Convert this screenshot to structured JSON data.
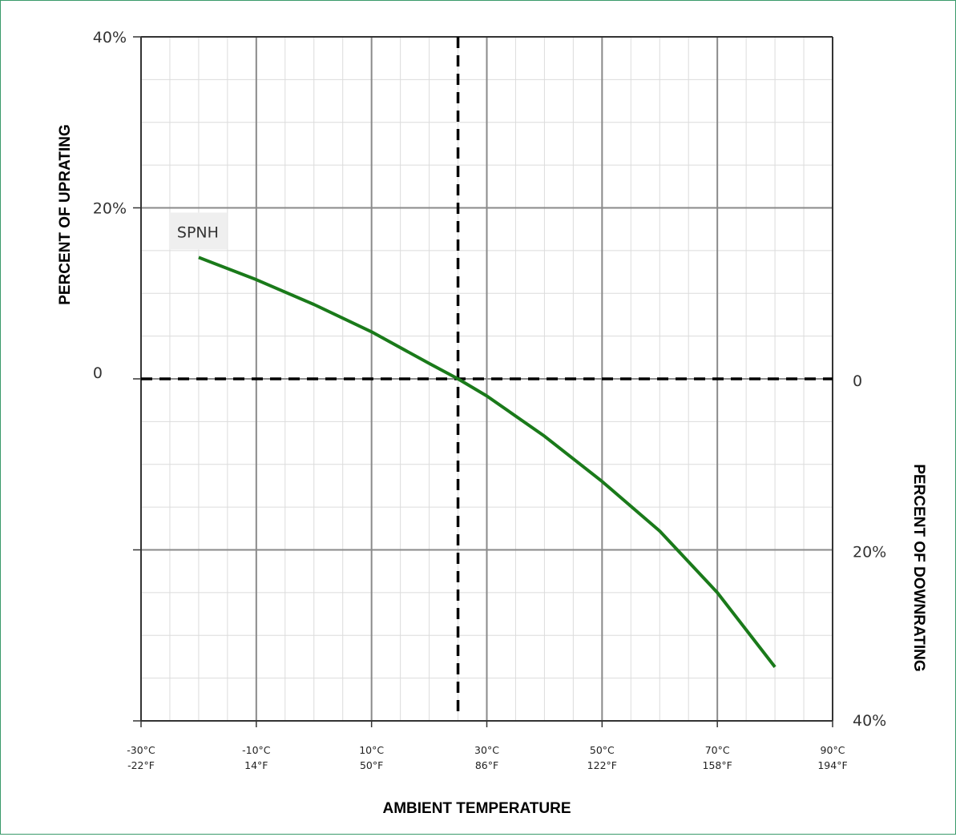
{
  "chart_data": {
    "type": "line",
    "title": "",
    "xlabel": "AMBIENT TEMPERATURE",
    "ylabel_left": "PERCENT OF UPRATING",
    "ylabel_right": "PERCENT OF DOWNRATING",
    "x_range": [
      -30,
      90
    ],
    "y_range": [
      -40,
      40
    ],
    "x_ticks": [
      {
        "value": -30,
        "c": "-30°C",
        "f": "-22°F"
      },
      {
        "value": -10,
        "c": "-10°C",
        "f": "14°F"
      },
      {
        "value": 10,
        "c": "10°C",
        "f": "50°F"
      },
      {
        "value": 30,
        "c": "30°C",
        "f": "86°F"
      },
      {
        "value": 50,
        "c": "50°C",
        "f": "122°F"
      },
      {
        "value": 70,
        "c": "70°C",
        "f": "158°F"
      },
      {
        "value": 90,
        "c": "90°C",
        "f": "194°F"
      }
    ],
    "left_ticks": [
      {
        "value": 40,
        "label": "40%"
      },
      {
        "value": 20,
        "label": "20%"
      },
      {
        "value": 0,
        "label": "0"
      }
    ],
    "right_ticks": [
      {
        "value": 0,
        "label": "0"
      },
      {
        "value": -20,
        "label": "20%"
      },
      {
        "value": -40,
        "label": "40%"
      }
    ],
    "major_x_step": 20,
    "minor_x_step": 5,
    "major_y_step": 20,
    "minor_y_step": 5,
    "reference_x": 25,
    "reference_y": 0,
    "grid": true,
    "series": [
      {
        "name": "SPNH",
        "color": "#1a7a1a",
        "x": [
          -20,
          -10,
          0,
          10,
          20,
          25,
          30,
          40,
          50,
          60,
          70,
          80
        ],
        "y": [
          14.2,
          11.6,
          8.7,
          5.5,
          1.8,
          0,
          -2.0,
          -6.7,
          -12.0,
          -17.8,
          -25.0,
          -33.7
        ]
      }
    ]
  }
}
